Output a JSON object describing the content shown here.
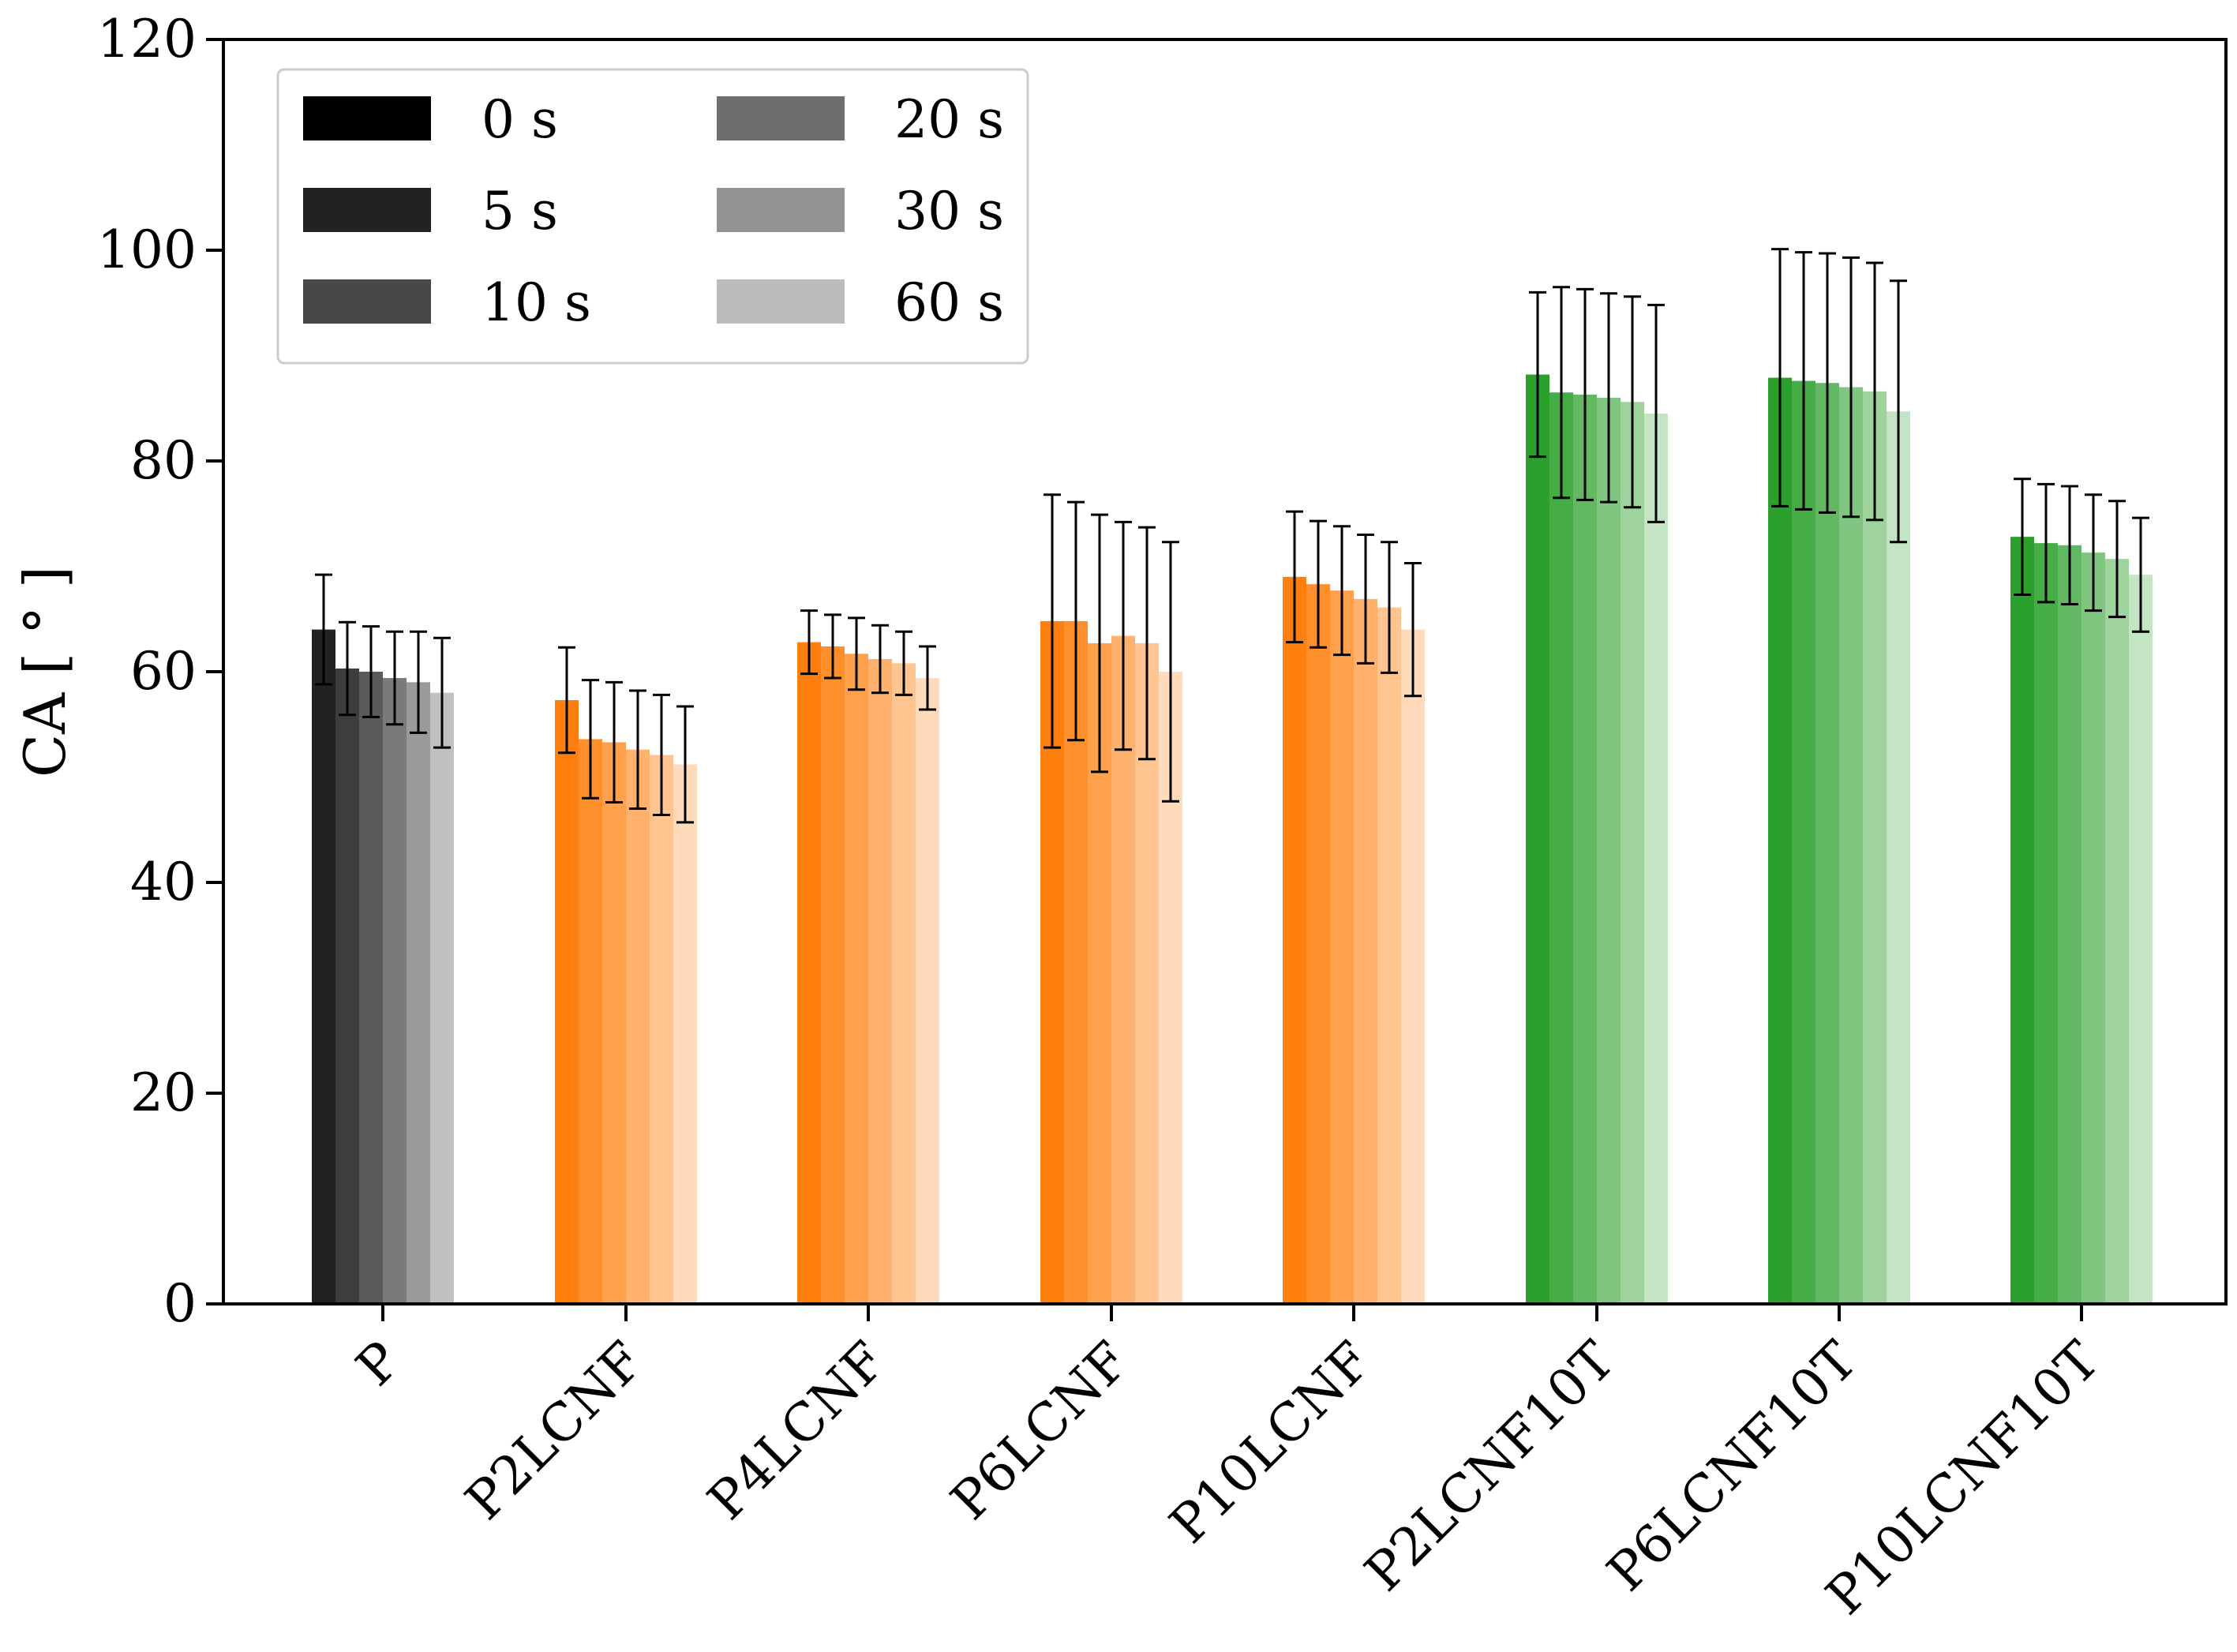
{
  "chart_data": {
    "type": "bar",
    "title": "",
    "xlabel": "",
    "ylabel": "CA [ ° ]",
    "ylim": [
      0,
      120
    ],
    "yticks": [
      0,
      20,
      40,
      60,
      80,
      100,
      120
    ],
    "grid": false,
    "legend_position": "top-left",
    "categories": [
      "P",
      "P2LCNF",
      "P4LCNF",
      "P6LCNF",
      "P10LCNF",
      "P2LCNF10T",
      "P6LCNF10T",
      "P10LCNF10T"
    ],
    "category_colors": [
      "#222222",
      "#ff7f0e",
      "#ff7f0e",
      "#ff7f0e",
      "#ff7f0e",
      "#2ca02c",
      "#2ca02c",
      "#2ca02c"
    ],
    "series": [
      {
        "name": "0 s",
        "alpha": 1.0,
        "legend_color": "#000000",
        "values": [
          64.0,
          57.3,
          62.8,
          64.8,
          69.0,
          88.2,
          87.9,
          72.8
        ],
        "errors": [
          5.2,
          5.0,
          3.0,
          12.0,
          6.2,
          7.8,
          12.2,
          5.5
        ]
      },
      {
        "name": "5 s",
        "alpha": 0.88,
        "legend_color": "#222222",
        "values": [
          60.3,
          53.6,
          62.4,
          64.8,
          68.3,
          86.5,
          87.6,
          72.2
        ],
        "errors": [
          4.4,
          5.6,
          3.0,
          11.3,
          6.0,
          10.0,
          12.2,
          5.6
        ]
      },
      {
        "name": "10 s",
        "alpha": 0.74,
        "legend_color": "#484848",
        "values": [
          60.0,
          53.3,
          61.7,
          62.7,
          67.7,
          86.3,
          87.4,
          72.0
        ],
        "errors": [
          4.3,
          5.7,
          3.4,
          12.2,
          6.1,
          10.0,
          12.3,
          5.6
        ]
      },
      {
        "name": "20 s",
        "alpha": 0.6,
        "legend_color": "#6e6e6e",
        "values": [
          59.4,
          52.6,
          61.2,
          63.4,
          66.9,
          86.0,
          87.0,
          71.3
        ],
        "errors": [
          4.4,
          5.6,
          3.2,
          10.8,
          6.1,
          9.9,
          12.3,
          5.5
        ]
      },
      {
        "name": "30 s",
        "alpha": 0.46,
        "legend_color": "#939393",
        "values": [
          59.0,
          52.1,
          60.8,
          62.7,
          66.1,
          85.6,
          86.6,
          70.7
        ],
        "errors": [
          4.8,
          5.7,
          3.0,
          11.0,
          6.2,
          10.0,
          12.2,
          5.5
        ]
      },
      {
        "name": "60 s",
        "alpha": 0.28,
        "legend_color": "#bcbcbc",
        "values": [
          58.0,
          51.2,
          59.4,
          60.0,
          64.0,
          84.5,
          84.7,
          69.2
        ],
        "errors": [
          5.2,
          5.5,
          3.0,
          12.3,
          6.3,
          10.3,
          12.4,
          5.4
        ]
      }
    ]
  }
}
